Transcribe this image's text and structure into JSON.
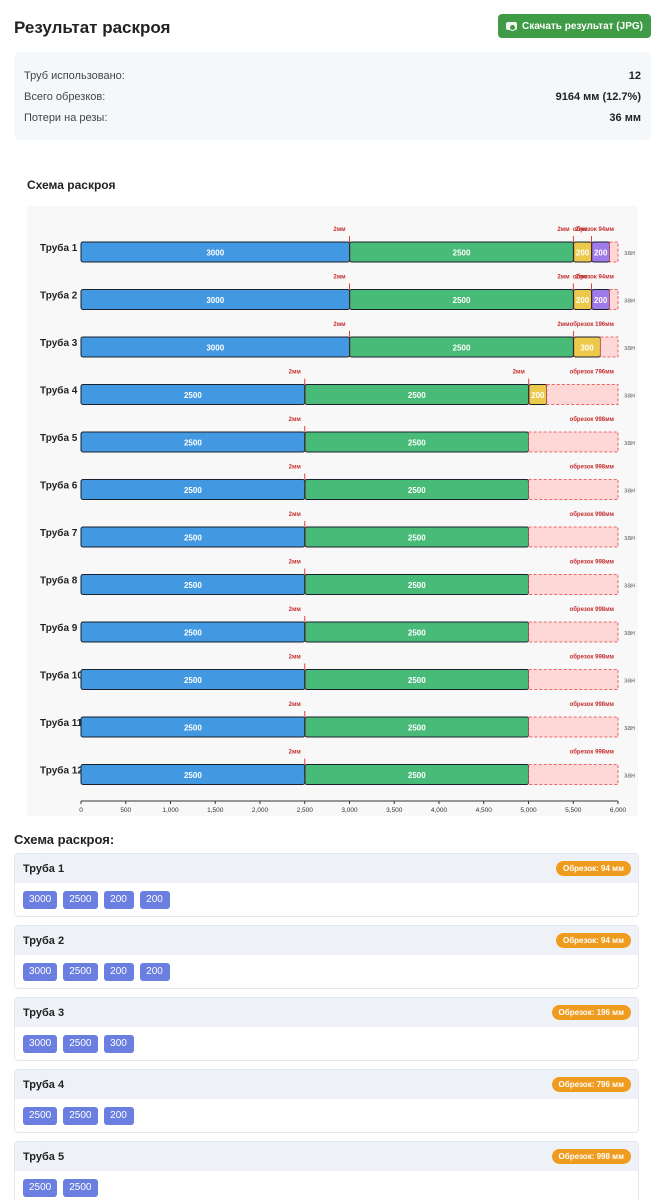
{
  "header": {
    "title": "Результат раскроя",
    "download_label": "Скачать результат (JPG)",
    "download_icon": "camera-icon"
  },
  "summary": [
    {
      "label": "Труб использовано:",
      "value": "12"
    },
    {
      "label": "Всего обрезков:",
      "value": "9164 мм (12.7%)"
    },
    {
      "label": "Потери на резы:",
      "value": "36 мм"
    }
  ],
  "chart_title": "Схема раскроя",
  "list_title": "Схема раскроя:",
  "pipe_list": [
    {
      "name": "Труба 1",
      "waste": "Обрезок: 94 мм",
      "pieces": [
        "3000",
        "2500",
        "200",
        "200"
      ]
    },
    {
      "name": "Труба 2",
      "waste": "Обрезок: 94 мм",
      "pieces": [
        "3000",
        "2500",
        "200",
        "200"
      ]
    },
    {
      "name": "Труба 3",
      "waste": "Обрезок: 196 мм",
      "pieces": [
        "3000",
        "2500",
        "300"
      ]
    },
    {
      "name": "Труба 4",
      "waste": "Обрезок: 796 мм",
      "pieces": [
        "2500",
        "2500",
        "200"
      ]
    },
    {
      "name": "Труба 5",
      "waste": "Обрезок: 998 мм",
      "pieces": [
        "2500",
        "2500"
      ]
    }
  ],
  "colors": {
    "piece_3000": "#4299e1",
    "piece_2500_first": "#4299e1",
    "piece_2500_second": "#48bb78",
    "piece_300": "#ecc94b",
    "piece_200_first": "#ecc94b",
    "piece_200_second": "#9f7aea",
    "waste_fill": "#fed7d7",
    "waste_stroke": "#e53e3e",
    "cut_label": "#c53030",
    "badge": "#ef9b1d",
    "list_piece": "#6b7fe0"
  },
  "chart_data": {
    "type": "bar",
    "orientation": "horizontal-stacked",
    "title": "Схема раскроя",
    "xlim": [
      0,
      6000
    ],
    "xticks": [
      "0",
      "500",
      "1,000",
      "1,500",
      "2,000",
      "2,500",
      "3,000",
      "3,500",
      "4,000",
      "4,500",
      "5,000",
      "5,500",
      "6,000"
    ],
    "xtick_values": [
      0,
      500,
      1000,
      1500,
      2000,
      2500,
      3000,
      3500,
      4000,
      4500,
      5000,
      5500,
      6000
    ],
    "pipe_length": 6000,
    "cut_width": 2,
    "cut_label": "2мм",
    "side_label": "зан",
    "grid": false,
    "pipes": [
      {
        "name": "Труба 1",
        "pieces": [
          3000,
          2500,
          200,
          200
        ],
        "waste": 94,
        "waste_label": "обрезок 94мм"
      },
      {
        "name": "Труба 2",
        "pieces": [
          3000,
          2500,
          200,
          200
        ],
        "waste": 94,
        "waste_label": "обрезок 94мм"
      },
      {
        "name": "Труба 3",
        "pieces": [
          3000,
          2500,
          300
        ],
        "waste": 196,
        "waste_label": "обрезок 196мм"
      },
      {
        "name": "Труба 4",
        "pieces": [
          2500,
          2500,
          200
        ],
        "waste": 796,
        "waste_label": "обрезок 796мм"
      },
      {
        "name": "Труба 5",
        "pieces": [
          2500,
          2500
        ],
        "waste": 998,
        "waste_label": "обрезок 998мм"
      },
      {
        "name": "Труба 6",
        "pieces": [
          2500,
          2500
        ],
        "waste": 998,
        "waste_label": "обрезок 998мм"
      },
      {
        "name": "Труба 7",
        "pieces": [
          2500,
          2500
        ],
        "waste": 998,
        "waste_label": "обрезок 998мм"
      },
      {
        "name": "Труба 8",
        "pieces": [
          2500,
          2500
        ],
        "waste": 998,
        "waste_label": "обрезок 998мм"
      },
      {
        "name": "Труба 9",
        "pieces": [
          2500,
          2500
        ],
        "waste": 998,
        "waste_label": "обрезок 998мм"
      },
      {
        "name": "Труба 10",
        "pieces": [
          2500,
          2500
        ],
        "waste": 998,
        "waste_label": "обрезок 998мм"
      },
      {
        "name": "Труба 11",
        "pieces": [
          2500,
          2500
        ],
        "waste": 998,
        "waste_label": "обрезок 998мм"
      },
      {
        "name": "Труба 12",
        "pieces": [
          2500,
          2500
        ],
        "waste": 998,
        "waste_label": "обрезок 998мм"
      }
    ]
  }
}
